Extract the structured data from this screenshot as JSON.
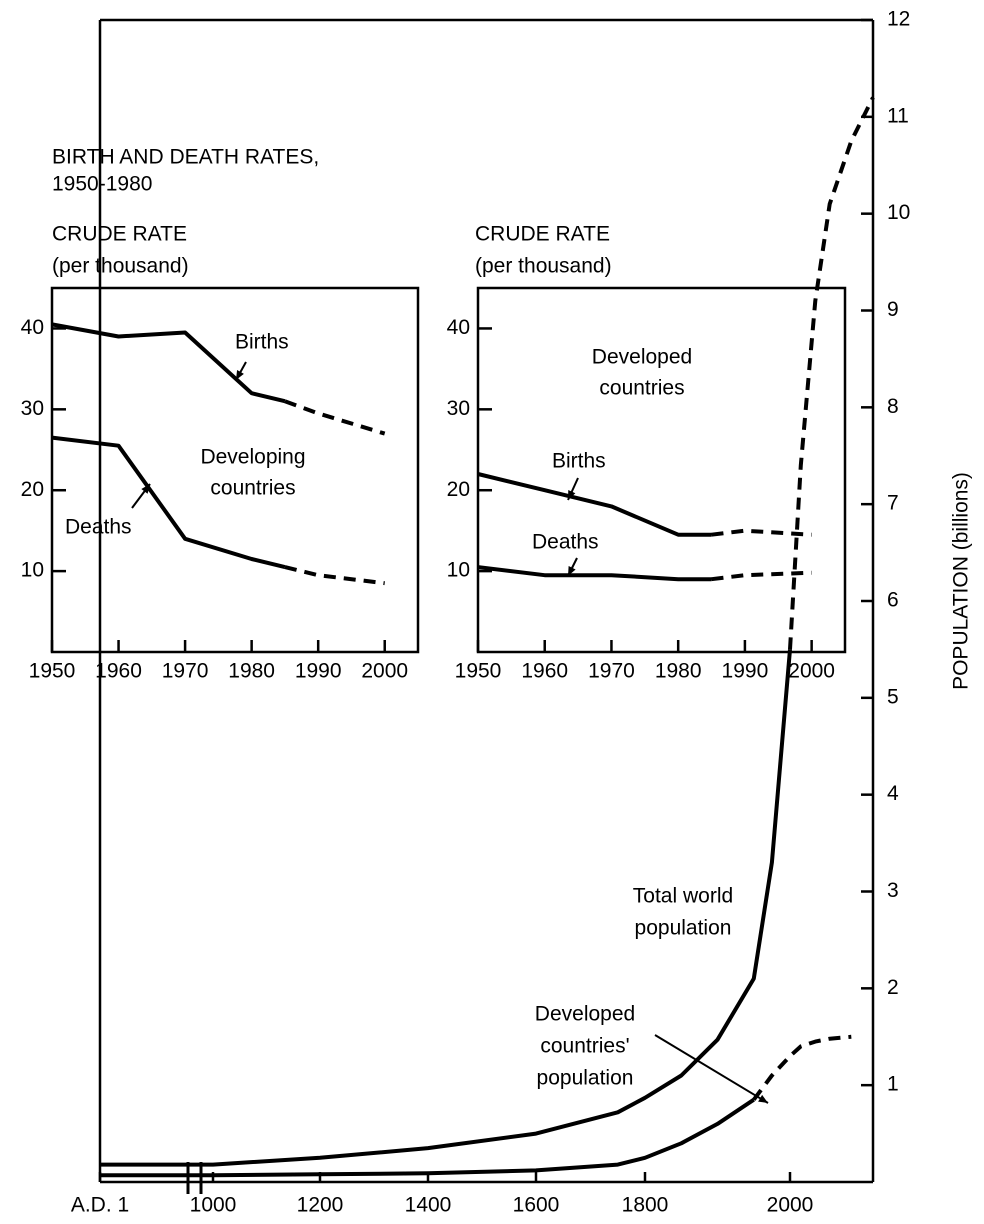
{
  "chart_data": [
    {
      "type": "line",
      "ylabel": "POPULATION (billions)",
      "x": [
        1,
        1000,
        1200,
        1400,
        1600,
        1750,
        1800,
        1850,
        1900,
        1950,
        1975,
        2000,
        2015,
        2035,
        2055,
        2085,
        2115
      ],
      "xlim": [
        1,
        2115
      ],
      "xticks": [
        {
          "value": 1,
          "label": "A.D. 1"
        },
        1000,
        1200,
        1400,
        1600,
        1800,
        2000
      ],
      "ylim": [
        0,
        12
      ],
      "yticks": [
        1,
        2,
        3,
        4,
        5,
        6,
        7,
        8,
        9,
        10,
        11,
        12
      ],
      "series": [
        {
          "name": [
            "Total world",
            "population"
          ],
          "color": "#000000",
          "values": [
            0.18,
            0.18,
            0.25,
            0.35,
            0.5,
            0.72,
            0.87,
            1.1,
            1.47,
            2.1,
            3.3,
            5.5,
            null,
            null,
            null,
            null,
            null
          ],
          "projected": [
            null,
            null,
            null,
            null,
            null,
            null,
            null,
            null,
            null,
            null,
            null,
            5.5,
            7.4,
            9.1,
            10.1,
            10.75,
            11.2
          ]
        },
        {
          "name": [
            "Developed",
            "countries'",
            "population"
          ],
          "color": "#000000",
          "values": [
            0.07,
            0.07,
            0.08,
            0.09,
            0.12,
            0.18,
            0.25,
            0.4,
            0.6,
            0.85,
            null,
            null,
            null,
            null,
            null,
            null,
            null
          ],
          "projected": [
            null,
            null,
            null,
            null,
            null,
            null,
            null,
            null,
            null,
            0.85,
            1.1,
            1.3,
            1.4,
            1.45,
            1.48,
            1.5,
            null
          ]
        }
      ]
    },
    {
      "type": "line",
      "title": [
        "BIRTH AND DEATH RATES,",
        "1950-1980"
      ],
      "ylabel": [
        "CRUDE RATE",
        "(per thousand)"
      ],
      "annotation": [
        "Developing",
        "countries"
      ],
      "x": [
        1950,
        1960,
        1970,
        1980,
        1985,
        1990,
        2000
      ],
      "xlim": [
        1950,
        2005
      ],
      "xticks": [
        1950,
        1960,
        1970,
        1980,
        1990,
        2000
      ],
      "ylim": [
        0,
        45
      ],
      "yticks": [
        10,
        20,
        30,
        40
      ],
      "series": [
        {
          "name": "Births",
          "color": "#000000",
          "values": [
            40.5,
            39,
            39.5,
            32,
            31,
            null,
            null
          ],
          "projected": [
            null,
            null,
            null,
            null,
            31,
            29.5,
            27
          ]
        },
        {
          "name": "Deaths",
          "color": "#000000",
          "values": [
            26.5,
            25.5,
            14,
            11.5,
            10.5,
            null,
            null
          ],
          "projected": [
            null,
            null,
            null,
            null,
            10.5,
            9.5,
            8.5
          ]
        }
      ]
    },
    {
      "type": "line",
      "ylabel": [
        "CRUDE RATE",
        "(per thousand)"
      ],
      "annotation": [
        "Developed",
        "countries"
      ],
      "x": [
        1950,
        1960,
        1970,
        1980,
        1985,
        1990,
        2000
      ],
      "xlim": [
        1950,
        2005
      ],
      "xticks": [
        1950,
        1960,
        1970,
        1980,
        1990,
        2000
      ],
      "ylim": [
        0,
        45
      ],
      "yticks": [
        10,
        20,
        30,
        40
      ],
      "series": [
        {
          "name": "Births",
          "color": "#000000",
          "values": [
            22,
            20,
            18,
            14.5,
            14.5,
            null,
            null
          ],
          "projected": [
            null,
            null,
            null,
            null,
            14.5,
            15,
            14.5
          ]
        },
        {
          "name": "Deaths",
          "color": "#000000",
          "values": [
            10.5,
            9.5,
            9.5,
            9,
            9,
            null,
            null
          ],
          "projected": [
            null,
            null,
            null,
            null,
            9,
            9.5,
            9.8
          ]
        }
      ]
    }
  ]
}
